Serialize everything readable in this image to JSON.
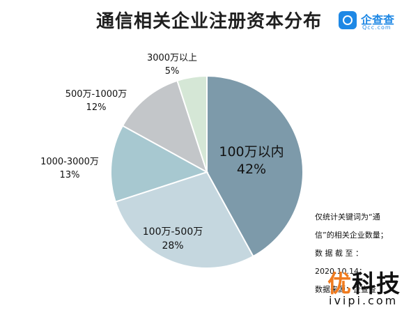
{
  "title": "通信相关企业注册资本分布",
  "logo": {
    "name": "企查查",
    "url": "Qcc.com"
  },
  "chart_data": {
    "type": "pie",
    "title": "通信相关企业注册资本分布",
    "slices": [
      {
        "label": "100万以内",
        "percent_text": "42%",
        "value": 42,
        "color": "#7d9aaa"
      },
      {
        "label": "100万-500万",
        "percent_text": "28%",
        "value": 28,
        "color": "#c5d7df"
      },
      {
        "label": "1000-3000万",
        "percent_text": "13%",
        "value": 13,
        "color": "#a7c8d0"
      },
      {
        "label": "500万-1000万",
        "percent_text": "12%",
        "value": 12,
        "color": "#c3c6c9"
      },
      {
        "label": "3000万以上",
        "percent_text": "5%",
        "value": 5,
        "color": "#d5e7d6"
      }
    ]
  },
  "note": {
    "line1": "仅统计关键词为“通",
    "line2": "信”的相关企业数量；",
    "line3": "数 据 截 至 ：",
    "line4": "2020.10.14；",
    "line5": "数据来源：企查查"
  },
  "watermark": {
    "accent": "优",
    "rest": "科技",
    "url": "ivipi.com"
  }
}
